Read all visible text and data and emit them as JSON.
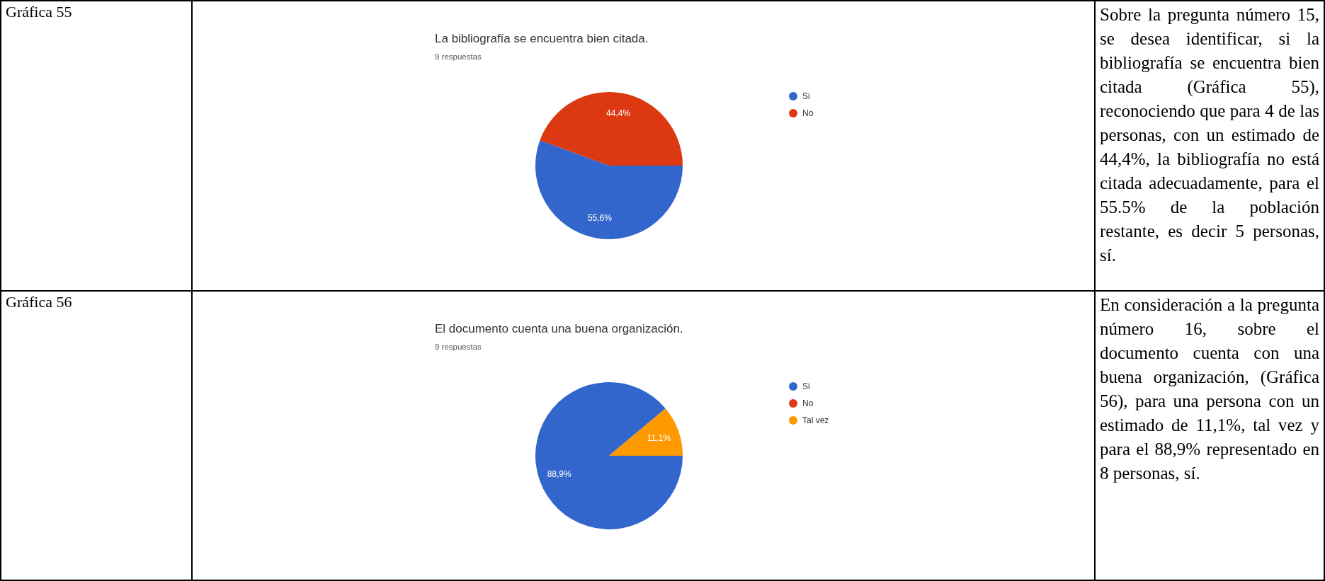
{
  "chart_data": [
    {
      "type": "other",
      "title": "Gráfica 55"
    },
    {
      "type": "pie",
      "title": "La bibliografía se encuentra bien citada.",
      "subtitle": "9 respuestas",
      "categories": [
        "Si",
        "No"
      ],
      "values": [
        55.6,
        44.4
      ],
      "colors": [
        "#3366cc",
        "#dc3912"
      ],
      "value_labels": [
        "55,6%",
        "44,4%"
      ],
      "legend": "right"
    },
    {
      "type": "other",
      "annotations": [
        "Sobre la pregunta número 15, se desea identificar, si la bibliografía se encuentra bien citada (Gráfica 55), reconociendo que para 4 de las personas, con un estimado de 44,4%, la bibliografía no está citada adecuadamente, para el 55.5% de la población restante, es decir 5 personas, sí."
      ]
    },
    {
      "type": "other",
      "title": "Gráfica 56"
    },
    {
      "type": "pie",
      "title": "El documento cuenta una buena organización.",
      "subtitle": "9 respuestas",
      "categories": [
        "Si",
        "No",
        "Tal vez"
      ],
      "values": [
        88.9,
        0,
        11.1
      ],
      "colors": [
        "#3366cc",
        "#dc3912",
        "#ff9900"
      ],
      "value_labels": [
        "88,9%",
        null,
        "11,1%"
      ],
      "legend": "right"
    },
    {
      "type": "other",
      "annotations": [
        "En consideración a la pregunta número 16, sobre el documento cuenta con una buena organización, (Gráfica 56), para una persona con un estimado de 11,1%, tal vez y para el 88,9% representado en 8 personas, sí."
      ]
    }
  ]
}
